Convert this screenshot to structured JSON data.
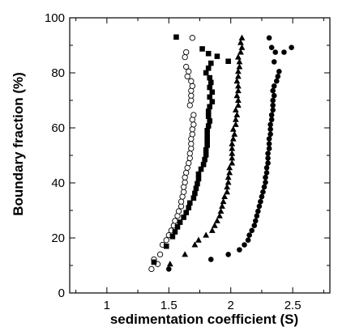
{
  "chart_data": {
    "type": "scatter",
    "xlabel": "sedimentation coefficient (S)",
    "ylabel": "Boundary fraction (%)",
    "xlim": [
      0.7,
      2.8
    ],
    "ylim": [
      0,
      100
    ],
    "xticks": [
      1,
      1.5,
      2,
      2.5
    ],
    "xtick_labels": [
      "1",
      "1.5",
      "2",
      "2.5"
    ],
    "yticks": [
      0,
      20,
      40,
      60,
      80,
      100
    ],
    "ytick_labels": [
      "0",
      "20",
      "40",
      "60",
      "80",
      "100"
    ],
    "grid": false,
    "legend": "none",
    "series": [
      {
        "marker": "open-circle",
        "color": "#000000",
        "points": [
          [
            1.36,
            8.7
          ],
          [
            1.38,
            12.2
          ],
          [
            1.41,
            10.5
          ],
          [
            1.43,
            14.0
          ],
          [
            1.45,
            17.5
          ],
          [
            1.48,
            19.2
          ],
          [
            1.5,
            21.0
          ],
          [
            1.52,
            22.7
          ],
          [
            1.54,
            24.5
          ],
          [
            1.55,
            26.2
          ],
          [
            1.57,
            28.0
          ],
          [
            1.58,
            29.7
          ],
          [
            1.6,
            31.5
          ],
          [
            1.6,
            33.2
          ],
          [
            1.61,
            35.0
          ],
          [
            1.62,
            36.7
          ],
          [
            1.62,
            38.5
          ],
          [
            1.63,
            40.2
          ],
          [
            1.63,
            42.0
          ],
          [
            1.64,
            43.7
          ],
          [
            1.65,
            45.5
          ],
          [
            1.66,
            47.2
          ],
          [
            1.67,
            49.0
          ],
          [
            1.67,
            50.7
          ],
          [
            1.68,
            52.5
          ],
          [
            1.68,
            54.2
          ],
          [
            1.68,
            56.0
          ],
          [
            1.69,
            57.7
          ],
          [
            1.69,
            59.5
          ],
          [
            1.7,
            61.2
          ],
          [
            1.69,
            63.0
          ],
          [
            1.7,
            64.7
          ],
          [
            1.67,
            68.2
          ],
          [
            1.68,
            70.0
          ],
          [
            1.68,
            71.7
          ],
          [
            1.68,
            73.5
          ],
          [
            1.69,
            75.2
          ],
          [
            1.68,
            77.0
          ],
          [
            1.65,
            78.7
          ],
          [
            1.66,
            80.5
          ],
          [
            1.64,
            82.2
          ],
          [
            1.63,
            85.7
          ],
          [
            1.64,
            87.5
          ],
          [
            1.69,
            92.7
          ]
        ]
      },
      {
        "marker": "filled-square",
        "color": "#000000",
        "points": [
          [
            1.38,
            11.2
          ],
          [
            1.48,
            17.0
          ],
          [
            1.53,
            20.5
          ],
          [
            1.55,
            22.2
          ],
          [
            1.57,
            24.0
          ],
          [
            1.59,
            25.7
          ],
          [
            1.62,
            27.5
          ],
          [
            1.64,
            29.2
          ],
          [
            1.66,
            31.0
          ],
          [
            1.67,
            32.7
          ],
          [
            1.7,
            34.5
          ],
          [
            1.71,
            36.2
          ],
          [
            1.72,
            38.0
          ],
          [
            1.73,
            39.7
          ],
          [
            1.74,
            41.5
          ],
          [
            1.74,
            43.2
          ],
          [
            1.76,
            45.0
          ],
          [
            1.78,
            46.7
          ],
          [
            1.79,
            48.5
          ],
          [
            1.8,
            50.2
          ],
          [
            1.8,
            52.0
          ],
          [
            1.81,
            53.7
          ],
          [
            1.81,
            55.5
          ],
          [
            1.81,
            57.2
          ],
          [
            1.81,
            59.0
          ],
          [
            1.82,
            60.7
          ],
          [
            1.83,
            62.5
          ],
          [
            1.82,
            64.2
          ],
          [
            1.82,
            66.0
          ],
          [
            1.83,
            67.7
          ],
          [
            1.85,
            69.5
          ],
          [
            1.83,
            71.2
          ],
          [
            1.85,
            73.0
          ],
          [
            1.83,
            74.7
          ],
          [
            1.84,
            76.5
          ],
          [
            1.83,
            78.2
          ],
          [
            1.8,
            80.0
          ],
          [
            1.82,
            81.7
          ],
          [
            1.84,
            83.5
          ],
          [
            1.82,
            87.0
          ],
          [
            1.77,
            88.7
          ],
          [
            1.89,
            86.0
          ],
          [
            1.98,
            84.2
          ],
          [
            1.56,
            93.0
          ]
        ]
      },
      {
        "marker": "filled-triangle",
        "color": "#000000",
        "points": [
          [
            1.51,
            10.5
          ],
          [
            1.63,
            14.0
          ],
          [
            1.71,
            17.5
          ],
          [
            1.74,
            19.2
          ],
          [
            1.8,
            21.0
          ],
          [
            1.85,
            22.7
          ],
          [
            1.87,
            24.5
          ],
          [
            1.89,
            26.2
          ],
          [
            1.91,
            28.0
          ],
          [
            1.92,
            29.7
          ],
          [
            1.93,
            31.5
          ],
          [
            1.94,
            33.2
          ],
          [
            1.95,
            35.0
          ],
          [
            1.97,
            36.7
          ],
          [
            1.97,
            38.5
          ],
          [
            1.98,
            40.2
          ],
          [
            1.98,
            42.0
          ],
          [
            1.99,
            43.7
          ],
          [
            1.99,
            45.5
          ],
          [
            2.01,
            47.2
          ],
          [
            2.01,
            49.0
          ],
          [
            2.01,
            50.7
          ],
          [
            2.01,
            52.5
          ],
          [
            2.01,
            54.2
          ],
          [
            2.02,
            56.0
          ],
          [
            2.03,
            57.7
          ],
          [
            2.02,
            59.5
          ],
          [
            2.04,
            61.2
          ],
          [
            2.04,
            63.0
          ],
          [
            2.05,
            64.7
          ],
          [
            2.04,
            66.5
          ],
          [
            2.06,
            68.2
          ],
          [
            2.06,
            70.0
          ],
          [
            2.05,
            71.7
          ],
          [
            2.06,
            73.5
          ],
          [
            2.06,
            75.2
          ],
          [
            2.05,
            77.0
          ],
          [
            2.06,
            78.7
          ],
          [
            2.06,
            80.5
          ],
          [
            2.07,
            82.2
          ],
          [
            2.07,
            84.0
          ],
          [
            2.06,
            85.7
          ],
          [
            2.08,
            87.5
          ],
          [
            2.09,
            89.2
          ],
          [
            2.08,
            91.0
          ],
          [
            2.09,
            92.7
          ]
        ]
      },
      {
        "marker": "filled-circle",
        "color": "#000000",
        "points": [
          [
            1.5,
            8.7
          ],
          [
            1.84,
            12.2
          ],
          [
            1.98,
            14.0
          ],
          [
            2.07,
            15.7
          ],
          [
            2.11,
            17.5
          ],
          [
            2.14,
            19.2
          ],
          [
            2.15,
            21.0
          ],
          [
            2.17,
            22.7
          ],
          [
            2.19,
            24.5
          ],
          [
            2.2,
            26.2
          ],
          [
            2.21,
            28.0
          ],
          [
            2.22,
            29.7
          ],
          [
            2.23,
            31.5
          ],
          [
            2.24,
            33.2
          ],
          [
            2.25,
            35.0
          ],
          [
            2.26,
            36.7
          ],
          [
            2.27,
            38.5
          ],
          [
            2.28,
            40.2
          ],
          [
            2.28,
            42.0
          ],
          [
            2.29,
            43.7
          ],
          [
            2.29,
            45.5
          ],
          [
            2.3,
            47.2
          ],
          [
            2.3,
            49.0
          ],
          [
            2.3,
            50.7
          ],
          [
            2.31,
            52.5
          ],
          [
            2.31,
            54.2
          ],
          [
            2.31,
            56.0
          ],
          [
            2.32,
            57.7
          ],
          [
            2.32,
            59.5
          ],
          [
            2.32,
            61.2
          ],
          [
            2.33,
            63.0
          ],
          [
            2.33,
            64.7
          ],
          [
            2.34,
            66.5
          ],
          [
            2.34,
            68.2
          ],
          [
            2.34,
            70.0
          ],
          [
            2.35,
            71.7
          ],
          [
            2.34,
            73.5
          ],
          [
            2.35,
            75.2
          ],
          [
            2.37,
            77.0
          ],
          [
            2.38,
            78.7
          ],
          [
            2.39,
            80.5
          ],
          [
            2.35,
            84.0
          ],
          [
            2.36,
            87.5
          ],
          [
            2.33,
            89.2
          ],
          [
            2.31,
            92.7
          ],
          [
            2.43,
            87.5
          ],
          [
            2.49,
            89.2
          ]
        ]
      }
    ]
  }
}
